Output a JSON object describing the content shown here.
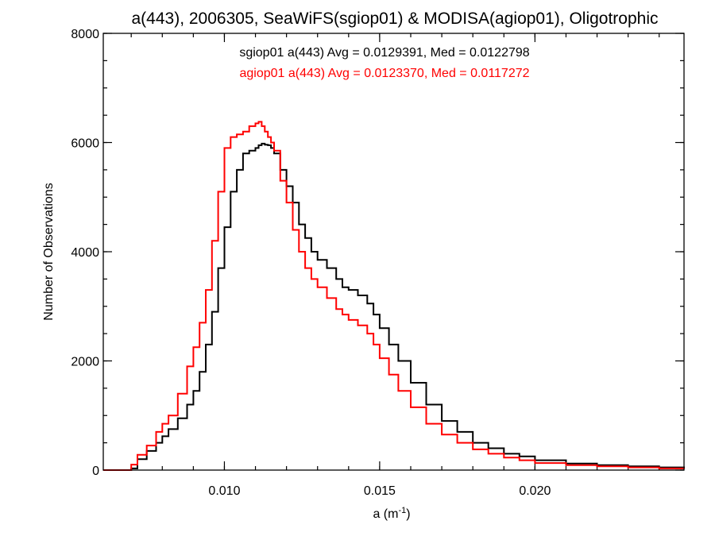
{
  "chart_data": {
    "type": "line",
    "title": "a(443), 2006305, SeaWiFS(sgiop01) & MODISA(agiop01), Oligotrophic",
    "xlabel_base": "a (m",
    "xlabel_sup": "-1",
    "xlabel_close": ")",
    "ylabel": "Number of Observations",
    "xlim": [
      0.0061,
      0.0248
    ],
    "ylim": [
      0,
      8000
    ],
    "x_ticks": [
      {
        "value": 0.01,
        "label": "0.010"
      },
      {
        "value": 0.015,
        "label": "0.015"
      },
      {
        "value": 0.02,
        "label": "0.020"
      }
    ],
    "x_minor_step": 0.001,
    "y_ticks": [
      {
        "value": 0,
        "label": "0"
      },
      {
        "value": 2000,
        "label": "2000"
      },
      {
        "value": 4000,
        "label": "4000"
      },
      {
        "value": 6000,
        "label": "6000"
      },
      {
        "value": 8000,
        "label": "8000"
      }
    ],
    "y_minor_step": 500,
    "legend_position": "top-center",
    "step": true,
    "series": [
      {
        "name": "sgiop01",
        "legend_text": "sgiop01 a(443) Avg = 0.0129391, Med = 0.0122798",
        "color": "#000000",
        "x": [
          0.0061,
          0.0067,
          0.007,
          0.0072,
          0.0075,
          0.0078,
          0.008,
          0.0082,
          0.0085,
          0.0088,
          0.009,
          0.0092,
          0.0094,
          0.0096,
          0.0098,
          0.01,
          0.0102,
          0.0104,
          0.0106,
          0.0108,
          0.011,
          0.0111,
          0.0112,
          0.0113,
          0.0114,
          0.0115,
          0.0116,
          0.0118,
          0.012,
          0.0122,
          0.0124,
          0.0126,
          0.0128,
          0.013,
          0.0133,
          0.0136,
          0.0138,
          0.014,
          0.0143,
          0.0146,
          0.0148,
          0.015,
          0.0153,
          0.0156,
          0.016,
          0.0165,
          0.017,
          0.0175,
          0.018,
          0.0185,
          0.019,
          0.0195,
          0.02,
          0.021,
          0.022,
          0.023,
          0.024,
          0.0248
        ],
        "y": [
          0,
          0,
          30,
          200,
          350,
          500,
          620,
          750,
          950,
          1200,
          1450,
          1800,
          2300,
          2900,
          3700,
          4450,
          5100,
          5500,
          5800,
          5850,
          5900,
          5950,
          5980,
          5960,
          5950,
          5900,
          5800,
          5500,
          5200,
          4900,
          4500,
          4250,
          4000,
          3850,
          3700,
          3500,
          3350,
          3300,
          3200,
          3050,
          2850,
          2600,
          2300,
          2000,
          1600,
          1200,
          900,
          700,
          500,
          400,
          300,
          250,
          180,
          120,
          90,
          70,
          50,
          30
        ]
      },
      {
        "name": "agiop01",
        "legend_text": "agiop01 a(443) Avg = 0.0123370, Med = 0.0117272",
        "color": "#ff0000",
        "x": [
          0.0061,
          0.0067,
          0.007,
          0.0072,
          0.0075,
          0.0078,
          0.008,
          0.0082,
          0.0085,
          0.0088,
          0.009,
          0.0092,
          0.0094,
          0.0096,
          0.0098,
          0.01,
          0.0102,
          0.0104,
          0.0106,
          0.0108,
          0.011,
          0.0111,
          0.0112,
          0.0113,
          0.0114,
          0.0115,
          0.0116,
          0.0118,
          0.012,
          0.0122,
          0.0124,
          0.0126,
          0.0128,
          0.013,
          0.0133,
          0.0136,
          0.0138,
          0.014,
          0.0143,
          0.0146,
          0.0148,
          0.015,
          0.0153,
          0.0156,
          0.016,
          0.0165,
          0.017,
          0.0175,
          0.018,
          0.0185,
          0.019,
          0.0195,
          0.02,
          0.021,
          0.022,
          0.023,
          0.024,
          0.0248
        ],
        "y": [
          0,
          0,
          100,
          280,
          450,
          700,
          850,
          1000,
          1400,
          1900,
          2250,
          2700,
          3300,
          4200,
          5100,
          5900,
          6100,
          6150,
          6200,
          6300,
          6350,
          6380,
          6300,
          6200,
          6100,
          6000,
          5850,
          5300,
          4900,
          4400,
          4000,
          3700,
          3500,
          3350,
          3150,
          2950,
          2850,
          2750,
          2650,
          2500,
          2300,
          2050,
          1750,
          1450,
          1150,
          850,
          650,
          500,
          380,
          300,
          230,
          180,
          130,
          90,
          70,
          50,
          30,
          20
        ]
      }
    ]
  }
}
